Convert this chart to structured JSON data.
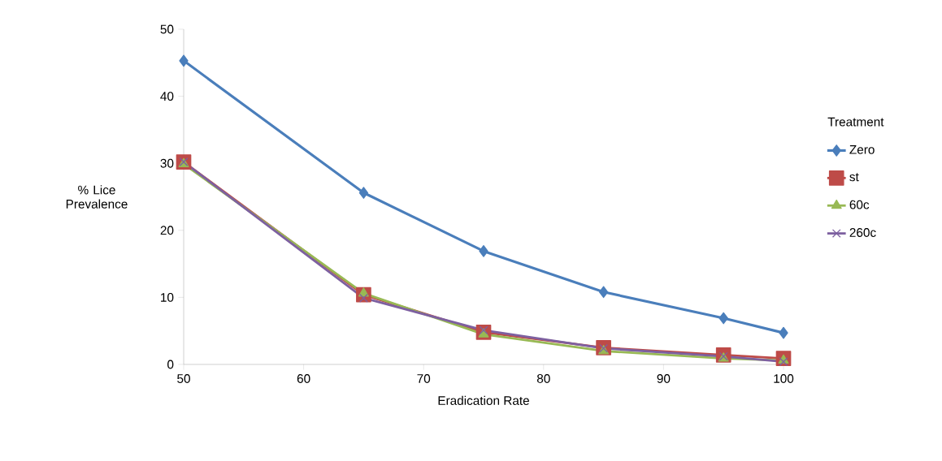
{
  "chart_data": {
    "type": "line",
    "xlabel": "Eradication Rate",
    "ylabel": "% Lice Prevalence",
    "legend_title": "Treatment",
    "legend": "right",
    "grid": false,
    "x": [
      50,
      65,
      75,
      85,
      95,
      100
    ],
    "xlim": [
      50,
      100
    ],
    "xticks": [
      50,
      60,
      70,
      80,
      90,
      100
    ],
    "ylim": [
      0,
      50
    ],
    "yticks": [
      0,
      10,
      20,
      30,
      40,
      50
    ],
    "series": [
      {
        "name": "Zero",
        "color": "#4a7ebb",
        "marker": "diamond",
        "values": [
          45.3,
          25.6,
          16.9,
          10.8,
          6.9,
          4.7
        ]
      },
      {
        "name": "st",
        "color": "#be4b48",
        "marker": "square",
        "values": [
          30.2,
          10.4,
          4.8,
          2.5,
          1.4,
          0.9
        ]
      },
      {
        "name": "60c",
        "color": "#98b954",
        "marker": "triangle",
        "values": [
          29.9,
          10.6,
          4.5,
          2.0,
          0.9,
          0.6
        ]
      },
      {
        "name": "260c",
        "color": "#7d60a0",
        "marker": "cross",
        "values": [
          30.2,
          9.9,
          5.1,
          2.4,
          1.2,
          0.4
        ]
      }
    ]
  }
}
